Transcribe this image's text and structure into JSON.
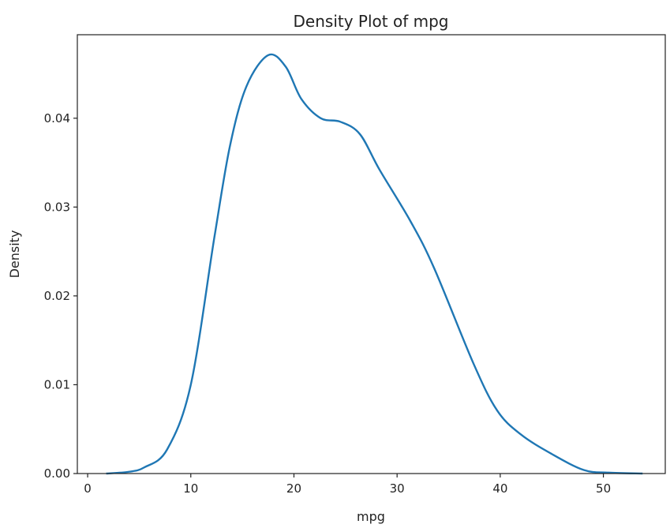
{
  "chart_data": {
    "type": "line",
    "title": "Density Plot of mpg",
    "xlabel": "mpg",
    "ylabel": "Density",
    "xlim": [
      -1,
      56
    ],
    "ylim": [
      0,
      0.0494
    ],
    "xticks": [
      0,
      10,
      20,
      30,
      40,
      50
    ],
    "xtick_labels": [
      "0",
      "10",
      "20",
      "30",
      "40",
      "50"
    ],
    "yticks": [
      0,
      0.01,
      0.02,
      0.03,
      0.04
    ],
    "ytick_labels": [
      "0.00",
      "0.01",
      "0.02",
      "0.03",
      "0.04"
    ],
    "grid": false,
    "color": "#1f77b4",
    "series": [
      {
        "x": [
          1.8,
          4.0,
          5.5,
          7.7,
          10.0,
          12.3,
          13.8,
          15.4,
          17.5,
          19.2,
          20.7,
          22.6,
          24.5,
          26.4,
          28.3,
          31.3,
          33.6,
          37.4,
          39.7,
          42.0,
          45.0,
          48.1,
          50.5,
          53.8
        ],
        "y": [
          0.0,
          0.0002,
          0.0007,
          0.0027,
          0.01,
          0.0267,
          0.0369,
          0.0436,
          0.0471,
          0.0458,
          0.0422,
          0.04,
          0.0396,
          0.0382,
          0.0342,
          0.0284,
          0.0231,
          0.0124,
          0.0071,
          0.0044,
          0.0022,
          0.0004,
          0.0001,
          0.0
        ]
      }
    ]
  }
}
